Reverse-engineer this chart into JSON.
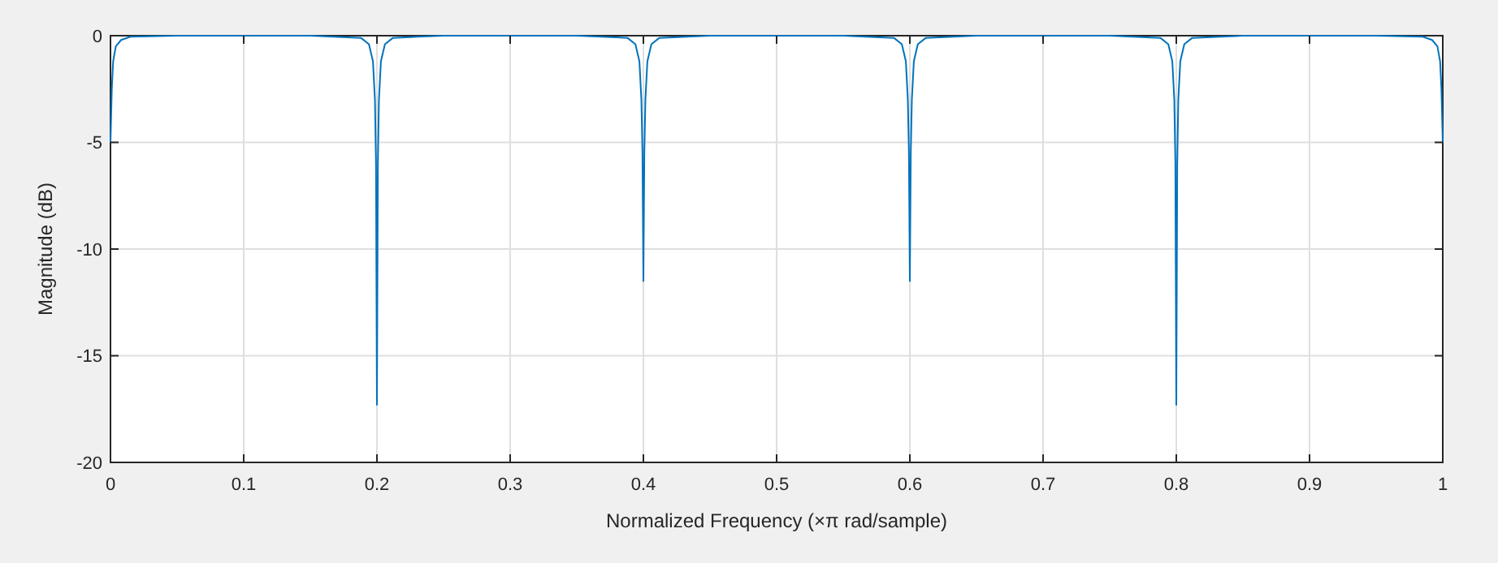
{
  "chart_data": {
    "type": "line",
    "xlabel": "Normalized Frequency  (×π rad/sample)",
    "ylabel": "Magnitude (dB)",
    "xlim": [
      0,
      1
    ],
    "ylim": [
      -20,
      0
    ],
    "xticks": [
      0,
      0.1,
      0.2,
      0.3,
      0.4,
      0.5,
      0.6,
      0.7,
      0.8,
      0.9,
      1
    ],
    "yticks": [
      -20,
      -15,
      -10,
      -5,
      0
    ],
    "grid": true,
    "series": [
      {
        "color": "#0072bd",
        "x": [
          0,
          0.001,
          0.002,
          0.004,
          0.008,
          0.015,
          0.05,
          0.15,
          0.188,
          0.194,
          0.197,
          0.1985,
          0.1993,
          0.2,
          0.2007,
          0.2015,
          0.203,
          0.206,
          0.212,
          0.25,
          0.35,
          0.388,
          0.394,
          0.397,
          0.3985,
          0.3993,
          0.4,
          0.4007,
          0.4015,
          0.403,
          0.406,
          0.412,
          0.45,
          0.55,
          0.588,
          0.594,
          0.597,
          0.5985,
          0.5993,
          0.6,
          0.6007,
          0.6015,
          0.603,
          0.606,
          0.612,
          0.65,
          0.75,
          0.788,
          0.794,
          0.797,
          0.7985,
          0.7993,
          0.8,
          0.8007,
          0.8015,
          0.803,
          0.806,
          0.812,
          0.85,
          0.95,
          0.985,
          0.992,
          0.996,
          0.998,
          0.999,
          1
        ],
        "values": [
          -5,
          -2.5,
          -1.2,
          -0.5,
          -0.2,
          -0.05,
          0,
          0,
          -0.1,
          -0.4,
          -1.2,
          -3,
          -6,
          -17.3,
          -6,
          -3,
          -1.2,
          -0.4,
          -0.1,
          0,
          0,
          -0.1,
          -0.4,
          -1.2,
          -3,
          -5.5,
          -11.5,
          -5.5,
          -3,
          -1.2,
          -0.4,
          -0.1,
          0,
          0,
          -0.1,
          -0.4,
          -1.2,
          -3,
          -5.5,
          -11.5,
          -5.5,
          -3,
          -1.2,
          -0.4,
          -0.1,
          0,
          0,
          -0.1,
          -0.4,
          -1.2,
          -3,
          -6,
          -17.3,
          -6,
          -3,
          -1.2,
          -0.4,
          -0.1,
          0,
          0,
          -0.05,
          -0.2,
          -0.5,
          -1.2,
          -2.5,
          -5
        ]
      }
    ]
  }
}
